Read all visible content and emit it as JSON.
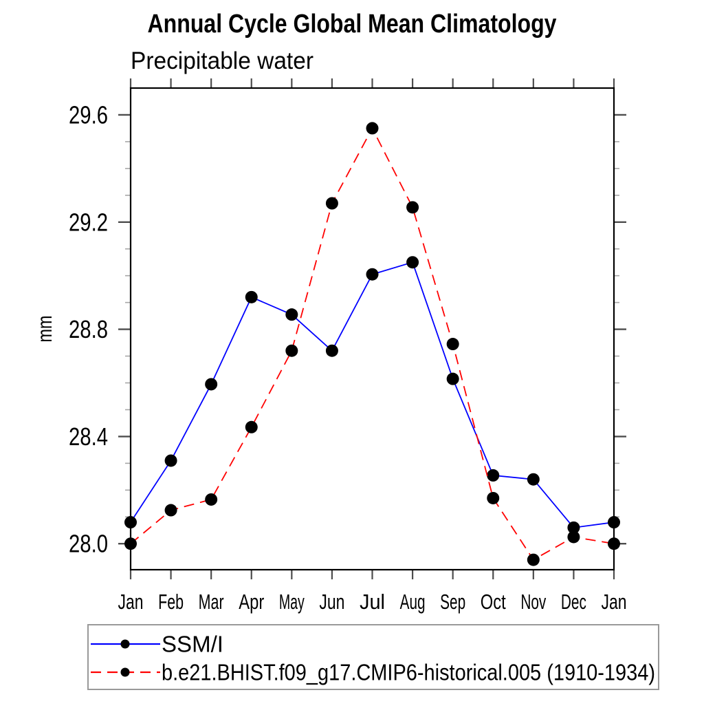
{
  "title": "Annual Cycle Global Mean Climatology",
  "subtitle": "Precipitable water",
  "ylabel": "mm",
  "chart_data": {
    "type": "line",
    "x_categories": [
      "Jan",
      "Feb",
      "Mar",
      "Apr",
      "May",
      "Jun",
      "Jul",
      "Aug",
      "Sep",
      "Oct",
      "Nov",
      "Dec",
      "Jan"
    ],
    "series": [
      {
        "name": "SSM/I",
        "color": "#0000ff",
        "line_style": "solid",
        "marker": "filled-circle",
        "marker_color": "#000000",
        "values": [
          28.08,
          28.31,
          28.595,
          28.92,
          28.855,
          28.72,
          29.005,
          29.05,
          28.615,
          28.255,
          28.24,
          28.06,
          28.08
        ]
      },
      {
        "name": "b.e21.BHIST.f09_g17.CMIP6-historical.005 (1910-1934)",
        "color": "#ff0000",
        "line_style": "dashed",
        "marker": "filled-circle",
        "marker_color": "#000000",
        "values": [
          28.0,
          28.125,
          28.165,
          28.435,
          28.72,
          29.27,
          29.55,
          29.255,
          28.745,
          28.17,
          27.94,
          28.025,
          28.0
        ]
      }
    ],
    "ylim": [
      27.903,
      29.7
    ],
    "yticks_major": [
      28.0,
      28.4,
      28.8,
      29.2,
      29.6
    ],
    "ytick_minor_step": 0.1,
    "grid": "off",
    "legend_position": "bottom"
  }
}
